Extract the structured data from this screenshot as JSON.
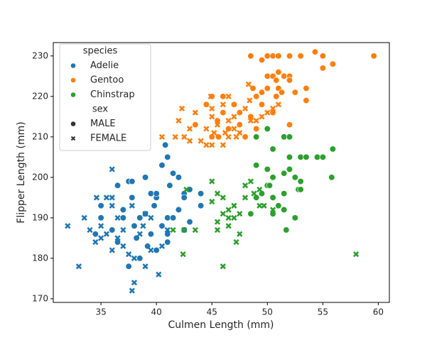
{
  "chart_data": {
    "type": "scatter",
    "x_label": "Culmen Length (mm)",
    "y_label": "Flipper Length (mm)",
    "xlim": [
      30.7,
      61.0
    ],
    "ylim": [
      169.1,
      233.3
    ],
    "xticks": [
      35,
      40,
      45,
      50,
      55,
      60
    ],
    "yticks": [
      170,
      180,
      190,
      200,
      210,
      220,
      230
    ],
    "legend": {
      "position": "upper left",
      "hue_title": "species",
      "style_title": "sex",
      "styles": [
        {
          "name": "MALE",
          "marker": "circle"
        },
        {
          "name": "FEMALE",
          "marker": "x"
        }
      ]
    },
    "series": [
      {
        "name": "Adelie",
        "color": "#1f77b4",
        "x": [
          36.5,
          37.5,
          37.8,
          39,
          40.8,
          41,
          40.5,
          41.5,
          42,
          43,
          42.5,
          44,
          42.5,
          41,
          40,
          39.5,
          38.5,
          39,
          37,
          35,
          35,
          34.5,
          36,
          37.8,
          38.2,
          39.2,
          40,
          41,
          41.5,
          40.5,
          39.8,
          42,
          43,
          38.5,
          37.5,
          39.5,
          40,
          41.2,
          44,
          42.5,
          37,
          38,
          36.5,
          41,
          32,
          33,
          33.5,
          34,
          34.5,
          35,
          35.5,
          36,
          36,
          36.5,
          35.5,
          35,
          37,
          37,
          37.5,
          38,
          37.8,
          38.5,
          39,
          39.5,
          36.5,
          36,
          37.8,
          38.8,
          40.5,
          39,
          34.6,
          36,
          40.2,
          41,
          39.5,
          38
        ],
        "y": [
          198,
          199,
          199,
          200,
          208,
          205,
          203,
          201,
          200,
          197,
          196,
          196,
          195,
          190,
          195,
          196,
          190,
          191,
          190,
          193,
          190,
          186,
          187,
          195,
          185,
          183,
          182,
          184,
          190,
          188,
          193,
          192,
          189,
          180,
          178,
          186,
          196,
          198,
          193,
          187,
          192,
          188,
          184,
          186,
          188,
          178,
          190,
          187,
          184,
          185,
          195,
          202,
          195,
          190,
          186,
          188,
          183,
          187,
          181,
          174,
          172,
          186,
          191,
          190,
          185,
          193,
          193,
          188,
          183,
          178,
          195,
          182,
          176,
          187,
          182,
          180
        ],
        "sex": [
          "MALE",
          "MALE",
          "MALE",
          "MALE",
          "MALE",
          "MALE",
          "MALE",
          "MALE",
          "MALE",
          "MALE",
          "MALE",
          "MALE",
          "MALE",
          "MALE",
          "MALE",
          "MALE",
          "MALE",
          "MALE",
          "MALE",
          "MALE",
          "MALE",
          "MALE",
          "MALE",
          "MALE",
          "MALE",
          "MALE",
          "MALE",
          "MALE",
          "MALE",
          "MALE",
          "MALE",
          "MALE",
          "MALE",
          "MALE",
          "MALE",
          "MALE",
          "MALE",
          "MALE",
          "MALE",
          "MALE",
          "MALE",
          "MALE",
          "MALE",
          "MALE",
          "FEMALE",
          "FEMALE",
          "FEMALE",
          "FEMALE",
          "FEMALE",
          "FEMALE",
          "FEMALE",
          "FEMALE",
          "FEMALE",
          "FEMALE",
          "FEMALE",
          "FEMALE",
          "FEMALE",
          "FEMALE",
          "FEMALE",
          "FEMALE",
          "FEMALE",
          "FEMALE",
          "FEMALE",
          "FEMALE",
          "FEMALE",
          "FEMALE",
          "FEMALE",
          "FEMALE",
          "FEMALE",
          "FEMALE",
          "FEMALE",
          "FEMALE",
          "FEMALE",
          "FEMALE",
          "FEMALE",
          "FEMALE"
        ]
      },
      {
        "name": "Gentoo",
        "color": "#ff7f0e",
        "x": [
          48.5,
          49.5,
          50,
          50.5,
          51,
          52,
          53,
          54.3,
          55,
          55.9,
          59.6,
          50,
          50.5,
          51.5,
          52,
          50,
          51,
          49.5,
          48.7,
          49,
          49.5,
          50.8,
          51.3,
          52.5,
          48.5,
          47.5,
          46,
          45,
          46,
          47,
          45.5,
          49,
          50,
          50.5,
          52,
          53.5,
          47.5,
          48,
          46.5,
          44.5,
          45,
          43.5,
          52,
          51,
          50.8,
          55,
          53.5,
          45.6,
          42,
          43,
          42.5,
          43,
          44,
          44.5,
          45,
          45.5,
          46,
          46.5,
          46.2,
          45.2,
          44.5,
          43.5,
          45,
          46,
          47,
          46.5,
          47,
          47.5,
          48.5,
          48.4,
          49,
          49.5,
          50.5,
          51,
          50,
          48,
          45,
          47.2,
          41.7,
          40.5,
          48.3,
          46.5,
          44.9,
          42.3
        ],
        "y": [
          230,
          229,
          230,
          230,
          230,
          230,
          230,
          231,
          230,
          228,
          230,
          225,
          225,
          225,
          225,
          222,
          222,
          221,
          222,
          220,
          218,
          220,
          221,
          221,
          215,
          216,
          216,
          220,
          220,
          218,
          214,
          212,
          212,
          216,
          213,
          219,
          213,
          210,
          212,
          218,
          210,
          213,
          224,
          226,
          224,
          227,
          222,
          210,
          214,
          212,
          210,
          209,
          209,
          208,
          208,
          213,
          208,
          210,
          211,
          211,
          212,
          216,
          217,
          218,
          215,
          214,
          212,
          211,
          214,
          219,
          214,
          215,
          217,
          218,
          216,
          217,
          215,
          210,
          210,
          210,
          223,
          220,
          220,
          217
        ],
        "sex": [
          "MALE",
          "MALE",
          "MALE",
          "MALE",
          "MALE",
          "MALE",
          "MALE",
          "MALE",
          "MALE",
          "MALE",
          "MALE",
          "MALE",
          "MALE",
          "MALE",
          "MALE",
          "MALE",
          "MALE",
          "MALE",
          "MALE",
          "MALE",
          "MALE",
          "MALE",
          "MALE",
          "MALE",
          "MALE",
          "MALE",
          "MALE",
          "MALE",
          "MALE",
          "MALE",
          "MALE",
          "MALE",
          "MALE",
          "MALE",
          "MALE",
          "MALE",
          "MALE",
          "MALE",
          "MALE",
          "MALE",
          "MALE",
          "MALE",
          "MALE",
          "MALE",
          "MALE",
          "MALE",
          "MALE",
          "MALE",
          "FEMALE",
          "FEMALE",
          "FEMALE",
          "FEMALE",
          "FEMALE",
          "FEMALE",
          "FEMALE",
          "FEMALE",
          "FEMALE",
          "FEMALE",
          "FEMALE",
          "FEMALE",
          "FEMALE",
          "FEMALE",
          "FEMALE",
          "FEMALE",
          "FEMALE",
          "FEMALE",
          "FEMALE",
          "FEMALE",
          "FEMALE",
          "FEMALE",
          "FEMALE",
          "FEMALE",
          "FEMALE",
          "FEMALE",
          "FEMALE",
          "FEMALE",
          "FEMALE",
          "FEMALE",
          "FEMALE",
          "FEMALE",
          "FEMALE",
          "FEMALE",
          "FEMALE",
          "FEMALE"
        ]
      },
      {
        "name": "Chinstrap",
        "color": "#2ca02c",
        "x": [
          49,
          50,
          51.5,
          52,
          50.5,
          49,
          50,
          50.5,
          51.5,
          52,
          53,
          53.5,
          54.5,
          55,
          55.8,
          55.9,
          52.5,
          53,
          52.8,
          51.5,
          50.5,
          49.5,
          50,
          52,
          53,
          51,
          51.5,
          49,
          50.5,
          48.5,
          51.7,
          52.5,
          50.2,
          42.5,
          43.5,
          42.4,
          45.5,
          45,
          46,
          46.5,
          46,
          46.5,
          47,
          47.5,
          47,
          45.5,
          46.5,
          45.5,
          47.5,
          48.5,
          48,
          48.8,
          49.3,
          49.3,
          49.7,
          50.5,
          46,
          45,
          47.2,
          42.7,
          58,
          41.5,
          48
        ],
        "y": [
          210,
          212,
          210,
          210,
          207,
          203,
          202,
          200,
          201,
          205,
          205,
          205,
          205,
          205,
          200,
          207,
          200,
          199,
          197,
          196,
          195,
          196,
          198,
          202,
          197,
          193,
          192,
          195,
          191,
          191,
          187,
          190,
          198,
          187,
          187,
          181,
          196,
          194,
          195,
          192,
          191,
          190,
          193,
          191,
          190,
          189,
          188,
          187,
          186,
          199,
          198,
          196,
          197,
          193,
          193,
          192,
          178,
          199,
          184,
          197,
          181,
          187,
          195
        ],
        "sex": [
          "MALE",
          "MALE",
          "MALE",
          "MALE",
          "MALE",
          "MALE",
          "MALE",
          "MALE",
          "MALE",
          "MALE",
          "MALE",
          "MALE",
          "MALE",
          "MALE",
          "MALE",
          "MALE",
          "MALE",
          "MALE",
          "MALE",
          "MALE",
          "MALE",
          "MALE",
          "MALE",
          "MALE",
          "MALE",
          "MALE",
          "MALE",
          "MALE",
          "MALE",
          "MALE",
          "MALE",
          "MALE",
          "MALE",
          "FEMALE",
          "FEMALE",
          "FEMALE",
          "FEMALE",
          "FEMALE",
          "FEMALE",
          "FEMALE",
          "FEMALE",
          "FEMALE",
          "FEMALE",
          "FEMALE",
          "FEMALE",
          "FEMALE",
          "FEMALE",
          "FEMALE",
          "FEMALE",
          "FEMALE",
          "FEMALE",
          "FEMALE",
          "FEMALE",
          "FEMALE",
          "FEMALE",
          "FEMALE",
          "FEMALE",
          "FEMALE",
          "FEMALE",
          "FEMALE",
          "FEMALE",
          "FEMALE",
          "FEMALE"
        ]
      }
    ]
  }
}
